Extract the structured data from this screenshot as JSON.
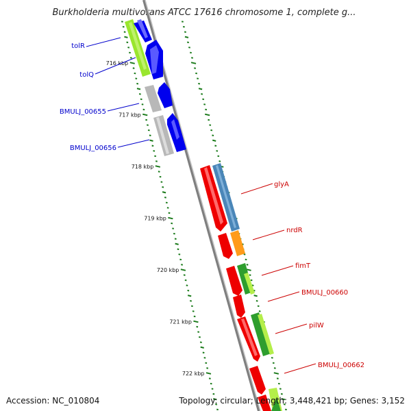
{
  "title": "Burkholderia multivorans ATCC 17616 chromosome 1, complete g...",
  "accession": "Accession: NC_010804",
  "topology": "Topology: circular; Length: 3,448,421 bp; Genes: 3,152",
  "ticks": [
    {
      "kbp": 716,
      "label": "716 kbp"
    },
    {
      "kbp": 717,
      "label": "717 kbp"
    },
    {
      "kbp": 718,
      "label": "718 kbp"
    },
    {
      "kbp": 719,
      "label": "719 kbp"
    },
    {
      "kbp": 720,
      "label": "720 kbp"
    },
    {
      "kbp": 721,
      "label": "721 kbp"
    },
    {
      "kbp": 722,
      "label": "722 kbp"
    }
  ],
  "genes_minus_strand": [
    {
      "name": "tolR",
      "color": "#0000ee"
    },
    {
      "name": "tolQ",
      "color": "#0000ee"
    },
    {
      "name": "BMULJ_00655",
      "color": "#0000ee"
    },
    {
      "name": "BMULJ_00656",
      "color": "#0000ee"
    }
  ],
  "genes_plus_strand": [
    {
      "name": "glyA",
      "color": "#ee0000"
    },
    {
      "name": "nrdR",
      "color": "#ee0000"
    },
    {
      "name": "fimT",
      "color": "#ee0000"
    },
    {
      "name": "BMULJ_00660",
      "color": "#ee0000"
    },
    {
      "name": "pilW",
      "color": "#ee0000"
    },
    {
      "name": "BMULJ_00662",
      "color": "#ee0000"
    }
  ],
  "colors": {
    "backbone": "#8c8c8c",
    "tick": "#1a7a1a",
    "minus_label": "#0000cc",
    "plus_label": "#cc0000",
    "cog_yellowgreen": "#9ae62e",
    "cog_gray": "#b8b8b8",
    "cog_steelblue": "#4a86b8",
    "cog_orange": "#ff9b1a",
    "cog_green": "#2e9e2e",
    "cog_lime": "#b4ee4a"
  }
}
